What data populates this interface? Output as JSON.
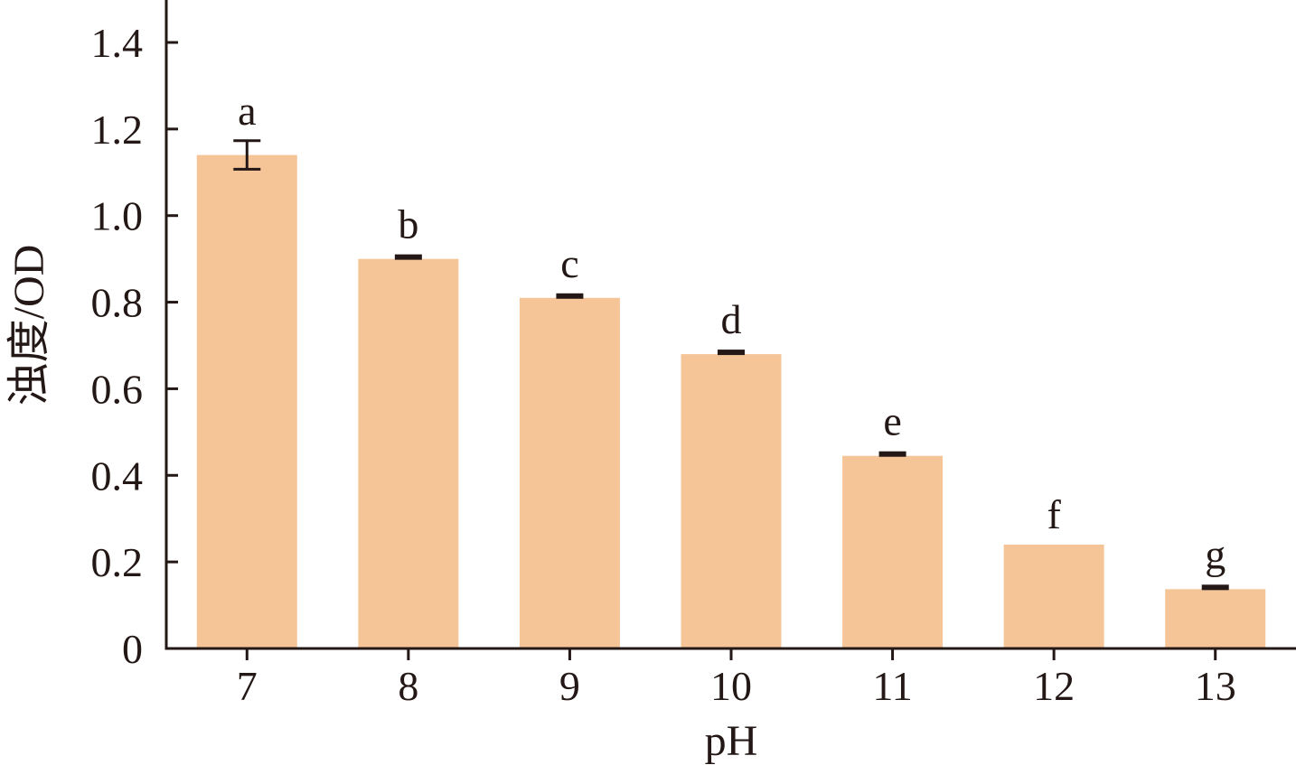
{
  "chart_data": {
    "type": "bar",
    "categories": [
      "7",
      "8",
      "9",
      "10",
      "11",
      "12",
      "13"
    ],
    "values": [
      1.14,
      0.9,
      0.81,
      0.68,
      0.445,
      0.24,
      0.137
    ],
    "errors": [
      0.033,
      0.005,
      0.006,
      0.003,
      0.003,
      0.0,
      0.004
    ],
    "significance_letters": [
      "a",
      "b",
      "c",
      "d",
      "e",
      "f",
      "g"
    ],
    "xlabel": "pH",
    "ylabel": "浊度/OD",
    "ylim": [
      0,
      1.5
    ],
    "yticks": [
      0,
      0.2,
      0.4,
      0.6,
      0.8,
      1.0,
      1.2,
      1.4
    ],
    "ytick_labels": [
      "0",
      "0.2",
      "0.4",
      "0.6",
      "0.8",
      "1.0",
      "1.2",
      "1.4"
    ],
    "bar_color": "#F5C598",
    "axis_color": "#231815",
    "grid": false,
    "legend": "none"
  }
}
